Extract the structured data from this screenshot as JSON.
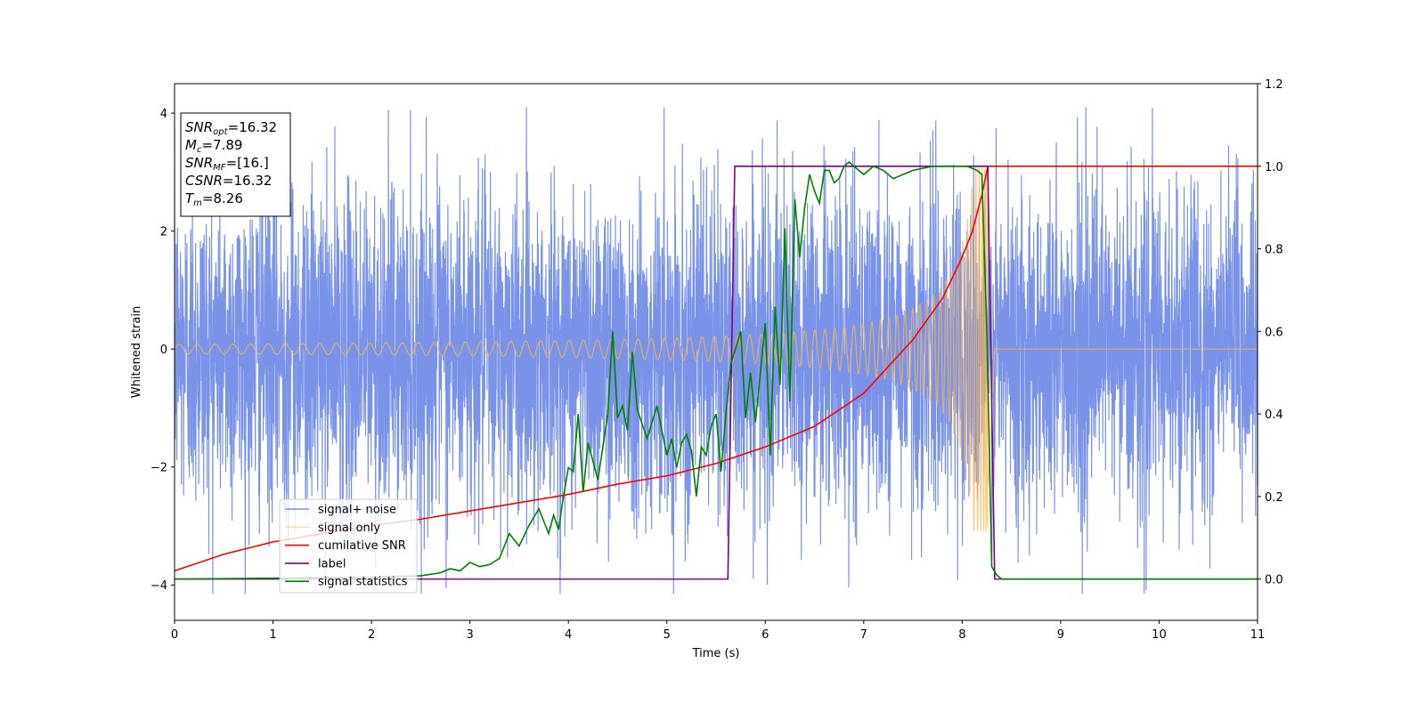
{
  "chart_data": {
    "type": "line",
    "xlabel": "Time (s)",
    "ylabel": "Whitened strain",
    "xlim": [
      0,
      11
    ],
    "ylim": [
      -4.6,
      4.5
    ],
    "y2lim": [
      -0.1,
      1.2
    ],
    "x_ticks": [
      "0",
      "1",
      "2",
      "3",
      "4",
      "5",
      "6",
      "7",
      "8",
      "9",
      "10",
      "11"
    ],
    "y_ticks": [
      "−4",
      "−2",
      "0",
      "2",
      "4"
    ],
    "y2_ticks": [
      "0.0",
      "0.2",
      "0.4",
      "0.6",
      "0.8",
      "1.0",
      "1.2"
    ],
    "grid": false,
    "legend_position": "lower-left",
    "annotation": {
      "lines": [
        {
          "main": "SNR",
          "sub": "opt",
          "value": "=16.32"
        },
        {
          "main": "M",
          "sub": "c",
          "value": "=7.89"
        },
        {
          "main": "SNR",
          "sub": "MF",
          "value": "=[16.]"
        },
        {
          "main": "CSNR",
          "sub": "",
          "value": "=16.32"
        },
        {
          "main": "T",
          "sub": "m",
          "value": "=8.26"
        }
      ]
    },
    "series": [
      {
        "name": "signal+ noise",
        "axis": "left",
        "color": "#4e6fe0",
        "kind": "noise",
        "x_range": [
          0,
          11
        ],
        "std": 1.35,
        "y_extremes": [
          -4.15,
          4.1
        ],
        "merger_time": 8.26
      },
      {
        "name": "signal only",
        "axis": "left",
        "color": "#ffb74d",
        "kind": "chirp",
        "x_range": [
          0,
          11
        ],
        "amplitude_start": 0.08,
        "amplitude_peak": 3.1,
        "merger_time": 8.26,
        "end_time": 8.33
      },
      {
        "name": "cumilative SNR",
        "axis": "right",
        "color": "#ff0000",
        "x": [
          0,
          0.5,
          1,
          1.5,
          2,
          2.5,
          3,
          3.5,
          4,
          4.5,
          5,
          5.5,
          6,
          6.5,
          7,
          7.5,
          7.8,
          8.0,
          8.1,
          8.2,
          8.26,
          8.27,
          11
        ],
        "y": [
          0.02,
          0.06,
          0.09,
          0.11,
          0.13,
          0.145,
          0.165,
          0.185,
          0.205,
          0.23,
          0.25,
          0.28,
          0.32,
          0.37,
          0.45,
          0.58,
          0.68,
          0.78,
          0.84,
          0.93,
          1.0,
          1.0,
          1.0
        ]
      },
      {
        "name": "label",
        "axis": "right",
        "color": "#800080",
        "x": [
          0,
          5.62,
          5.69,
          8.26,
          8.33,
          11
        ],
        "y": [
          0,
          0,
          1,
          1,
          0,
          0
        ]
      },
      {
        "name": "signal statistics",
        "axis": "right",
        "color": "#008000",
        "x": [
          0,
          1,
          2,
          2.5,
          2.7,
          2.8,
          2.9,
          3.0,
          3.1,
          3.2,
          3.3,
          3.4,
          3.5,
          3.6,
          3.7,
          3.8,
          3.85,
          3.9,
          3.95,
          4.0,
          4.05,
          4.1,
          4.15,
          4.2,
          4.3,
          4.4,
          4.45,
          4.5,
          4.55,
          4.6,
          4.65,
          4.7,
          4.8,
          4.9,
          5.0,
          5.05,
          5.1,
          5.15,
          5.2,
          5.25,
          5.3,
          5.35,
          5.4,
          5.45,
          5.5,
          5.55,
          5.6,
          5.65,
          5.7,
          5.75,
          5.8,
          5.85,
          5.9,
          6.0,
          6.05,
          6.1,
          6.15,
          6.2,
          6.25,
          6.3,
          6.35,
          6.4,
          6.45,
          6.5,
          6.55,
          6.6,
          6.65,
          6.7,
          6.75,
          6.8,
          6.85,
          6.9,
          7.0,
          7.1,
          7.2,
          7.3,
          7.5,
          7.7,
          7.9,
          8.05,
          8.15,
          8.2,
          8.25,
          8.3,
          8.35,
          8.4,
          11
        ],
        "y": [
          0,
          0.002,
          0.005,
          0.008,
          0.015,
          0.025,
          0.02,
          0.04,
          0.03,
          0.035,
          0.05,
          0.11,
          0.08,
          0.13,
          0.17,
          0.11,
          0.155,
          0.12,
          0.2,
          0.27,
          0.26,
          0.4,
          0.21,
          0.33,
          0.24,
          0.4,
          0.6,
          0.39,
          0.42,
          0.36,
          0.55,
          0.41,
          0.34,
          0.42,
          0.3,
          0.34,
          0.27,
          0.33,
          0.35,
          0.31,
          0.2,
          0.32,
          0.3,
          0.37,
          0.4,
          0.26,
          0.4,
          0.52,
          0.56,
          0.6,
          0.39,
          0.5,
          0.38,
          0.62,
          0.3,
          0.66,
          0.47,
          0.85,
          0.43,
          0.92,
          0.78,
          0.9,
          0.98,
          0.94,
          0.91,
          0.99,
          0.99,
          0.96,
          0.97,
          1.0,
          1.01,
          1.0,
          0.98,
          1.0,
          0.99,
          0.97,
          0.99,
          1.0,
          1.0,
          1.0,
          0.99,
          0.98,
          0.6,
          0.03,
          0.01,
          0.0,
          0.0
        ]
      }
    ]
  }
}
